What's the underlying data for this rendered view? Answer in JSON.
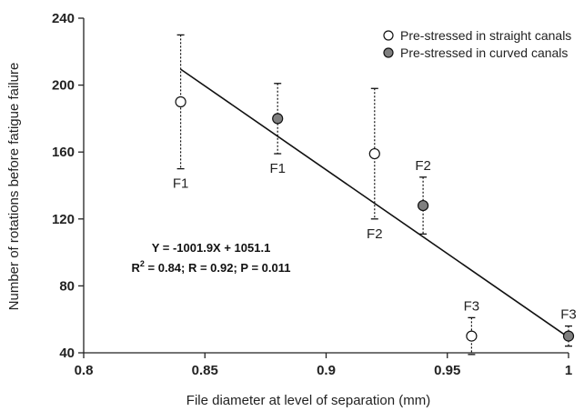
{
  "chart_data": {
    "type": "scatter",
    "title": "",
    "xlabel": "File diameter at level of separation (mm)",
    "ylabel": "Number of rotations before fatigue failure",
    "xlim": [
      0.8,
      1.0
    ],
    "ylim": [
      40,
      240
    ],
    "x_ticks": [
      "0.8",
      "0.85",
      "0.9",
      "0.95",
      "1"
    ],
    "y_ticks": [
      "40",
      "80",
      "120",
      "160",
      "200",
      "240"
    ],
    "legend_position": "top-right",
    "series": [
      {
        "name": "Pre-stressed in straight canals",
        "marker": "open-circle",
        "points": [
          {
            "x": 0.84,
            "y": 190,
            "err_low": 150,
            "err_high": 230,
            "label": "F1"
          },
          {
            "x": 0.92,
            "y": 159,
            "err_low": 120,
            "err_high": 198,
            "label": "F2"
          },
          {
            "x": 0.96,
            "y": 50,
            "err_low": 39,
            "err_high": 61,
            "label": "F3"
          }
        ]
      },
      {
        "name": "Pre-stressed in curved canals",
        "marker": "filled-circle",
        "points": [
          {
            "x": 0.88,
            "y": 180,
            "err_low": 159,
            "err_high": 201,
            "label": "F1"
          },
          {
            "x": 0.94,
            "y": 128,
            "err_low": 111,
            "err_high": 145,
            "label": "F2"
          },
          {
            "x": 1.0,
            "y": 50,
            "err_low": 44,
            "err_high": 56,
            "label": "F3"
          }
        ]
      }
    ],
    "trendline": {
      "x_start": 0.84,
      "x_end": 1.0,
      "slope": -1001.9,
      "intercept": 1051.1
    },
    "annotations": {
      "equation": "Y = -1001.9X + 1051.1",
      "stats_r2_prefix": "R",
      "stats_r2_sup": "2",
      "stats_rest": " = 0.84; R = 0.92; P = 0.011"
    },
    "colors": {
      "open_marker_fill": "#ffffff",
      "filled_marker_fill": "#7f7f7f",
      "line": "#111111",
      "axis": "#222222"
    }
  }
}
